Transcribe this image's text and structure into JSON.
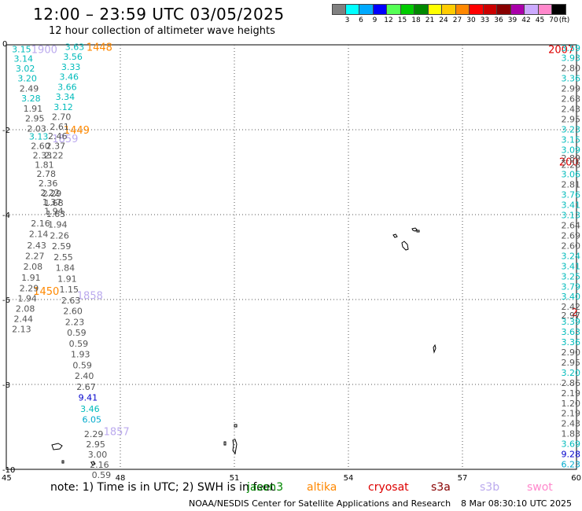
{
  "header": {
    "title": "12:00 – 23:59 UTC 03/05/2025",
    "subtitle": "12 hour collection of altimeter wave heights"
  },
  "color_scale": {
    "unit": "(ft)",
    "bins": [
      {
        "label": "3",
        "color": "#808080"
      },
      {
        "label": "6",
        "color": "#00ffff"
      },
      {
        "label": "9",
        "color": "#00aaff"
      },
      {
        "label": "12",
        "color": "#0000ff"
      },
      {
        "label": "15",
        "color": "#55ff55"
      },
      {
        "label": "18",
        "color": "#00cc00"
      },
      {
        "label": "21",
        "color": "#008800"
      },
      {
        "label": "24",
        "color": "#ffff00"
      },
      {
        "label": "27",
        "color": "#ffcc00"
      },
      {
        "label": "30",
        "color": "#ff8800"
      },
      {
        "label": "33",
        "color": "#ff0000"
      },
      {
        "label": "36",
        "color": "#cc0000"
      },
      {
        "label": "39",
        "color": "#880000"
      },
      {
        "label": "42",
        "color": "#aa00aa"
      },
      {
        "label": "45",
        "color": "#ccaaff"
      },
      {
        "label": "70",
        "color": "#ff88cc"
      },
      {
        "label": "",
        "color": "#000000"
      }
    ]
  },
  "map": {
    "lon_ticks": [
      "45",
      "48",
      "51",
      "54",
      "57",
      "60"
    ],
    "lat_ticks": [
      "0",
      "-2",
      "-4",
      "-6",
      "-8",
      "-10"
    ]
  },
  "note": "note:  1) Time is in UTC; 2) SWH is in feet",
  "satellites": [
    {
      "name": "jason3",
      "color": "#008800"
    },
    {
      "name": "altika",
      "color": "#ff8800"
    },
    {
      "name": "cryosat",
      "color": "#dd0000"
    },
    {
      "name": "s3a",
      "color": "#880000"
    },
    {
      "name": "s3b",
      "color": "#bbaaee"
    },
    {
      "name": "swot",
      "color": "#ff88cc"
    }
  ],
  "footer": {
    "credit": "NOAA/NESDIS Center for Satellite Applications and Research",
    "generated": "8 Mar 08:30:10 UTC 2025"
  },
  "track_labels": [
    {
      "text": "1448",
      "color": "#ff8800",
      "lon": 47.45,
      "lat": -0.05
    },
    {
      "text": "1900",
      "color": "#bbaaee",
      "lon": 46.0,
      "lat": -0.1
    },
    {
      "text": "1449",
      "color": "#ff8800",
      "lon": 46.85,
      "lat": -2.0
    },
    {
      "text": "1859",
      "color": "#bbaaee",
      "lon": 46.55,
      "lat": -2.2
    },
    {
      "text": "1450",
      "color": "#ff8800",
      "lon": 46.05,
      "lat": -5.8
    },
    {
      "text": "1858",
      "color": "#bbaaee",
      "lon": 47.2,
      "lat": -5.9
    },
    {
      "text": "1857",
      "color": "#bbaaee",
      "lon": 47.9,
      "lat": -9.1
    },
    {
      "text": "2007",
      "color": "#dd0000",
      "lon": 59.6,
      "lat": -0.1
    },
    {
      "text": "200",
      "color": "#dd0000",
      "lon": 59.8,
      "lat": -2.75
    },
    {
      "text": "2",
      "color": "#dd0000",
      "lon": 59.95,
      "lat": -6.3
    }
  ],
  "wave_heights": [
    {
      "v": "3.15",
      "c": "#00bbbb",
      "lon": 45.4,
      "lat": -0.1
    },
    {
      "v": "3.14",
      "c": "#00bbbb",
      "lon": 45.45,
      "lat": -0.32
    },
    {
      "v": "3.02",
      "c": "#00bbbb",
      "lon": 45.5,
      "lat": -0.56
    },
    {
      "v": "3.20",
      "c": "#00bbbb",
      "lon": 45.55,
      "lat": -0.79
    },
    {
      "v": "2.49",
      "c": "#555555",
      "lon": 45.6,
      "lat": -1.03
    },
    {
      "v": "3.28",
      "c": "#00bbbb",
      "lon": 45.65,
      "lat": -1.26
    },
    {
      "v": "1.91",
      "c": "#555555",
      "lon": 45.7,
      "lat": -1.5
    },
    {
      "v": "2.95",
      "c": "#555555",
      "lon": 45.75,
      "lat": -1.73
    },
    {
      "v": "2.03",
      "c": "#555555",
      "lon": 45.8,
      "lat": -1.97
    },
    {
      "v": "3.13",
      "c": "#00bbbb",
      "lon": 45.85,
      "lat": -2.16
    },
    {
      "v": "2.60",
      "c": "#555555",
      "lon": 45.9,
      "lat": -2.38
    },
    {
      "v": "2.33",
      "c": "#555555",
      "lon": 45.95,
      "lat": -2.6
    },
    {
      "v": "1.81",
      "c": "#555555",
      "lon": 46.0,
      "lat": -2.82
    },
    {
      "v": "2.78",
      "c": "#555555",
      "lon": 46.05,
      "lat": -3.04
    },
    {
      "v": "2.36",
      "c": "#555555",
      "lon": 46.1,
      "lat": -3.26
    },
    {
      "v": "2.22",
      "c": "#555555",
      "lon": 46.15,
      "lat": -3.48
    },
    {
      "v": "1.37",
      "c": "#555555",
      "lon": 46.2,
      "lat": -3.7
    },
    {
      "v": "1.94",
      "c": "#555555",
      "lon": 46.25,
      "lat": -3.92
    },
    {
      "v": "2.16",
      "c": "#555555",
      "lon": 45.9,
      "lat": -4.2
    },
    {
      "v": "2.14",
      "c": "#555555",
      "lon": 45.85,
      "lat": -4.45
    },
    {
      "v": "2.43",
      "c": "#555555",
      "lon": 45.8,
      "lat": -4.72
    },
    {
      "v": "2.27",
      "c": "#555555",
      "lon": 45.75,
      "lat": -4.97
    },
    {
      "v": "2.08",
      "c": "#555555",
      "lon": 45.7,
      "lat": -5.22
    },
    {
      "v": "1.91",
      "c": "#555555",
      "lon": 45.65,
      "lat": -5.48
    },
    {
      "v": "2.29",
      "c": "#555555",
      "lon": 45.6,
      "lat": -5.73
    },
    {
      "v": "1.94",
      "c": "#555555",
      "lon": 45.55,
      "lat": -5.97
    },
    {
      "v": "2.08",
      "c": "#555555",
      "lon": 45.5,
      "lat": -6.21
    },
    {
      "v": "2.44",
      "c": "#555555",
      "lon": 45.45,
      "lat": -6.45
    },
    {
      "v": "2.13",
      "c": "#555555",
      "lon": 45.4,
      "lat": -6.69
    },
    {
      "v": "3.63",
      "c": "#00bbbb",
      "lon": 46.8,
      "lat": -0.05
    },
    {
      "v": "3.56",
      "c": "#00bbbb",
      "lon": 46.75,
      "lat": -0.28
    },
    {
      "v": "3.33",
      "c": "#00bbbb",
      "lon": 46.7,
      "lat": -0.52
    },
    {
      "v": "3.46",
      "c": "#00bbbb",
      "lon": 46.65,
      "lat": -0.75
    },
    {
      "v": "3.66",
      "c": "#00bbbb",
      "lon": 46.6,
      "lat": -0.99
    },
    {
      "v": "3.34",
      "c": "#00bbbb",
      "lon": 46.55,
      "lat": -1.22
    },
    {
      "v": "3.12",
      "c": "#00bbbb",
      "lon": 46.5,
      "lat": -1.46
    },
    {
      "v": "2.70",
      "c": "#555555",
      "lon": 46.45,
      "lat": -1.69
    },
    {
      "v": "2.61",
      "c": "#555555",
      "lon": 46.4,
      "lat": -1.93
    },
    {
      "v": "2.46",
      "c": "#555555",
      "lon": 46.35,
      "lat": -2.15
    },
    {
      "v": "2.37",
      "c": "#555555",
      "lon": 46.3,
      "lat": -2.38
    },
    {
      "v": "2.22",
      "c": "#555555",
      "lon": 46.25,
      "lat": -2.6
    },
    {
      "v": "2.29",
      "c": "#555555",
      "lon": 46.2,
      "lat": -3.5
    },
    {
      "v": "1.68",
      "c": "#555555",
      "lon": 46.25,
      "lat": -3.72
    },
    {
      "v": "1.63",
      "c": "#555555",
      "lon": 46.3,
      "lat": -3.98
    },
    {
      "v": "1.94",
      "c": "#555555",
      "lon": 46.35,
      "lat": -4.23
    },
    {
      "v": "2.26",
      "c": "#555555",
      "lon": 46.4,
      "lat": -4.49
    },
    {
      "v": "2.59",
      "c": "#555555",
      "lon": 46.45,
      "lat": -4.74
    },
    {
      "v": "2.55",
      "c": "#555555",
      "lon": 46.5,
      "lat": -5.0
    },
    {
      "v": "1.84",
      "c": "#555555",
      "lon": 46.55,
      "lat": -5.25
    },
    {
      "v": "1.91",
      "c": "#555555",
      "lon": 46.6,
      "lat": -5.51
    },
    {
      "v": "1.15",
      "c": "#555555",
      "lon": 46.65,
      "lat": -5.76
    },
    {
      "v": "2.63",
      "c": "#555555",
      "lon": 46.7,
      "lat": -6.02
    },
    {
      "v": "2.60",
      "c": "#555555",
      "lon": 46.75,
      "lat": -6.27
    },
    {
      "v": "2.23",
      "c": "#555555",
      "lon": 46.8,
      "lat": -6.53
    },
    {
      "v": "0.59",
      "c": "#555555",
      "lon": 46.85,
      "lat": -6.78
    },
    {
      "v": "0.59",
      "c": "#555555",
      "lon": 46.9,
      "lat": -7.04
    },
    {
      "v": "1.93",
      "c": "#555555",
      "lon": 46.95,
      "lat": -7.29
    },
    {
      "v": "0.59",
      "c": "#555555",
      "lon": 47.0,
      "lat": -7.55
    },
    {
      "v": "2.40",
      "c": "#555555",
      "lon": 47.05,
      "lat": -7.8
    },
    {
      "v": "2.67",
      "c": "#555555",
      "lon": 47.1,
      "lat": -8.06
    },
    {
      "v": "9.41",
      "c": "#0000cc",
      "lon": 47.15,
      "lat": -8.31
    },
    {
      "v": "3.46",
      "c": "#00bbbb",
      "lon": 47.2,
      "lat": -8.57
    },
    {
      "v": "6.05",
      "c": "#00aacc",
      "lon": 47.25,
      "lat": -8.82
    },
    {
      "v": "2.29",
      "c": "#555555",
      "lon": 47.3,
      "lat": -9.17
    },
    {
      "v": "2.95",
      "c": "#555555",
      "lon": 47.35,
      "lat": -9.41
    },
    {
      "v": "3.00",
      "c": "#555555",
      "lon": 47.4,
      "lat": -9.65
    },
    {
      "v": "2.16",
      "c": "#555555",
      "lon": 47.45,
      "lat": -9.89
    },
    {
      "v": "0.59",
      "c": "#555555",
      "lon": 47.5,
      "lat": -10.13
    },
    {
      "v": "3.59",
      "c": "#00bbbb",
      "lon": 59.85,
      "lat": -0.07
    },
    {
      "v": "3.93",
      "c": "#00bbbb",
      "lon": 59.85,
      "lat": -0.31
    },
    {
      "v": "2.80",
      "c": "#555555",
      "lon": 59.85,
      "lat": -0.55
    },
    {
      "v": "3.36",
      "c": "#00bbbb",
      "lon": 59.85,
      "lat": -0.79
    },
    {
      "v": "2.99",
      "c": "#555555",
      "lon": 59.85,
      "lat": -1.03
    },
    {
      "v": "2.68",
      "c": "#555555",
      "lon": 59.85,
      "lat": -1.27
    },
    {
      "v": "2.43",
      "c": "#555555",
      "lon": 59.85,
      "lat": -1.51
    },
    {
      "v": "2.95",
      "c": "#555555",
      "lon": 59.85,
      "lat": -1.75
    },
    {
      "v": "3.23",
      "c": "#00bbbb",
      "lon": 59.85,
      "lat": -1.99
    },
    {
      "v": "3.15",
      "c": "#00bbbb",
      "lon": 59.85,
      "lat": -2.23
    },
    {
      "v": "3.09",
      "c": "#00bbbb",
      "lon": 59.85,
      "lat": -2.47
    },
    {
      "v": "2.89",
      "c": "#555555",
      "lon": 59.85,
      "lat": -2.67
    },
    {
      "v": "2.28",
      "c": "#555555",
      "lon": 59.85,
      "lat": -2.82
    },
    {
      "v": "3.06",
      "c": "#00bbbb",
      "lon": 59.85,
      "lat": -3.05
    },
    {
      "v": "2.81",
      "c": "#555555",
      "lon": 59.85,
      "lat": -3.29
    },
    {
      "v": "3.76",
      "c": "#00bbbb",
      "lon": 59.85,
      "lat": -3.53
    },
    {
      "v": "3.41",
      "c": "#00bbbb",
      "lon": 59.85,
      "lat": -3.77
    },
    {
      "v": "3.13",
      "c": "#00bbbb",
      "lon": 59.85,
      "lat": -4.01
    },
    {
      "v": "2.64",
      "c": "#555555",
      "lon": 59.85,
      "lat": -4.25
    },
    {
      "v": "2.69",
      "c": "#555555",
      "lon": 59.85,
      "lat": -4.49
    },
    {
      "v": "2.60",
      "c": "#555555",
      "lon": 59.85,
      "lat": -4.73
    },
    {
      "v": "3.24",
      "c": "#00bbbb",
      "lon": 59.85,
      "lat": -4.97
    },
    {
      "v": "3.41",
      "c": "#00bbbb",
      "lon": 59.85,
      "lat": -5.21
    },
    {
      "v": "3.25",
      "c": "#00bbbb",
      "lon": 59.85,
      "lat": -5.45
    },
    {
      "v": "3.79",
      "c": "#00bbbb",
      "lon": 59.85,
      "lat": -5.69
    },
    {
      "v": "3.40",
      "c": "#00bbbb",
      "lon": 59.85,
      "lat": -5.93
    },
    {
      "v": "2.42",
      "c": "#555555",
      "lon": 59.85,
      "lat": -6.17
    },
    {
      "v": "2.97",
      "c": "#555555",
      "lon": 59.85,
      "lat": -6.37
    },
    {
      "v": "3.39",
      "c": "#00bbbb",
      "lon": 59.85,
      "lat": -6.52
    },
    {
      "v": "3.63",
      "c": "#00bbbb",
      "lon": 59.85,
      "lat": -6.76
    },
    {
      "v": "3.36",
      "c": "#00bbbb",
      "lon": 59.85,
      "lat": -7.0
    },
    {
      "v": "2.90",
      "c": "#555555",
      "lon": 59.85,
      "lat": -7.24
    },
    {
      "v": "2.95",
      "c": "#555555",
      "lon": 59.85,
      "lat": -7.48
    },
    {
      "v": "3.20",
      "c": "#00bbbb",
      "lon": 59.85,
      "lat": -7.72
    },
    {
      "v": "2.86",
      "c": "#555555",
      "lon": 59.85,
      "lat": -7.96
    },
    {
      "v": "2.19",
      "c": "#555555",
      "lon": 59.85,
      "lat": -8.2
    },
    {
      "v": "1.20",
      "c": "#555555",
      "lon": 59.85,
      "lat": -8.44
    },
    {
      "v": "2.19",
      "c": "#555555",
      "lon": 59.85,
      "lat": -8.68
    },
    {
      "v": "2.43",
      "c": "#555555",
      "lon": 59.85,
      "lat": -8.92
    },
    {
      "v": "1.83",
      "c": "#555555",
      "lon": 59.85,
      "lat": -9.16
    },
    {
      "v": "3.69",
      "c": "#00bbbb",
      "lon": 59.85,
      "lat": -9.4
    },
    {
      "v": "9.28",
      "c": "#0000cc",
      "lon": 59.85,
      "lat": -9.64
    },
    {
      "v": "6.23",
      "c": "#00aacc",
      "lon": 59.85,
      "lat": -9.88
    }
  ]
}
